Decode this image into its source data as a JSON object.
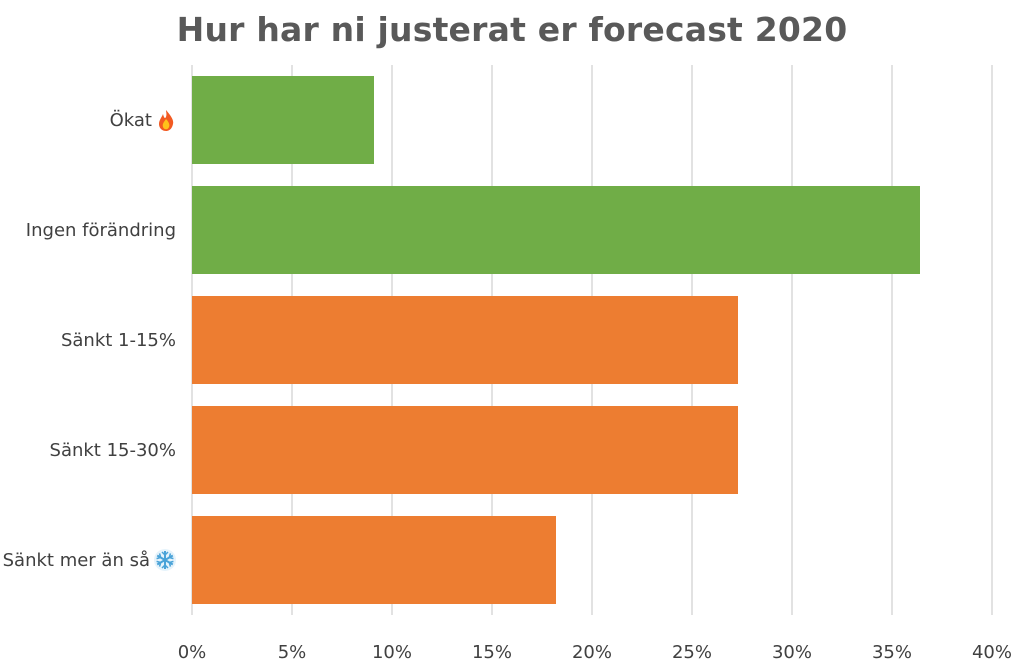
{
  "chart_data": {
    "type": "bar",
    "orientation": "horizontal",
    "title": "Hur har ni justerat er forecast 2020",
    "xlabel": "",
    "ylabel": "",
    "categories": [
      "Ökat",
      "Ingen förändring",
      "Sänkt 1-15%",
      "Sänkt 15-30%",
      "Sänkt mer än så"
    ],
    "category_icons": [
      "fire-icon",
      "",
      "",
      "",
      "snowflake-icon"
    ],
    "values": [
      0.091,
      0.364,
      0.273,
      0.273,
      0.182
    ],
    "bar_colors": [
      "#70ad47",
      "#70ad47",
      "#ed7d31",
      "#ed7d31",
      "#ed7d31"
    ],
    "xlim": [
      0,
      0.4
    ],
    "x_ticks": [
      0,
      0.05,
      0.1,
      0.15,
      0.2,
      0.25,
      0.3,
      0.35,
      0.4
    ],
    "x_tick_labels": [
      "0%",
      "5%",
      "10%",
      "15%",
      "20%",
      "25%",
      "30%",
      "35%",
      "40%"
    ],
    "grid": true,
    "legend": "none"
  }
}
